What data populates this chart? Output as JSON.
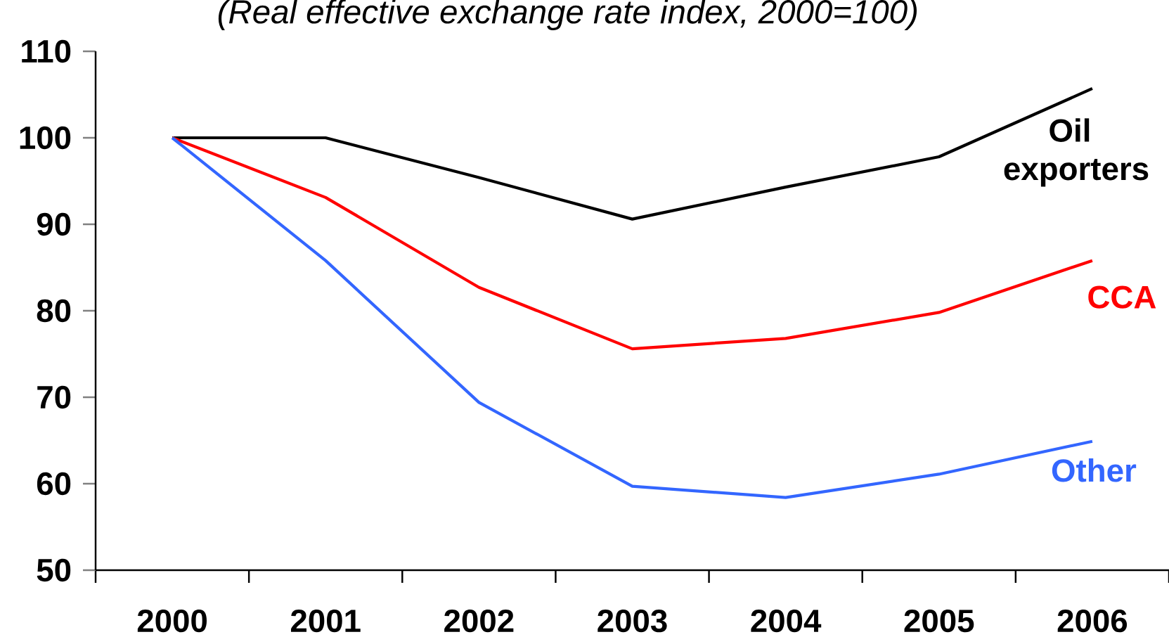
{
  "chart_data": {
    "type": "line",
    "title": "(Real effective exchange rate index, 2000=100)",
    "categories": [
      "2000",
      "2001",
      "2002",
      "2003",
      "2004",
      "2005",
      "2006"
    ],
    "series": [
      {
        "name": "Oil exporters",
        "color": "#000000",
        "values": [
          100,
          100,
          95.4,
          90.6,
          94.3,
          97.8,
          105.7
        ]
      },
      {
        "name": "CCA",
        "color": "#ff0000",
        "values": [
          100,
          93.1,
          82.7,
          75.6,
          76.8,
          79.8,
          85.8
        ]
      },
      {
        "name": "Other",
        "color": "#3366ff",
        "values": [
          100,
          85.8,
          69.4,
          59.7,
          58.4,
          61.1,
          64.9
        ]
      }
    ],
    "ylim": [
      50,
      110
    ],
    "yticks": [
      50,
      60,
      70,
      80,
      90,
      100,
      110
    ],
    "marker": "none",
    "line_style": "solid"
  }
}
